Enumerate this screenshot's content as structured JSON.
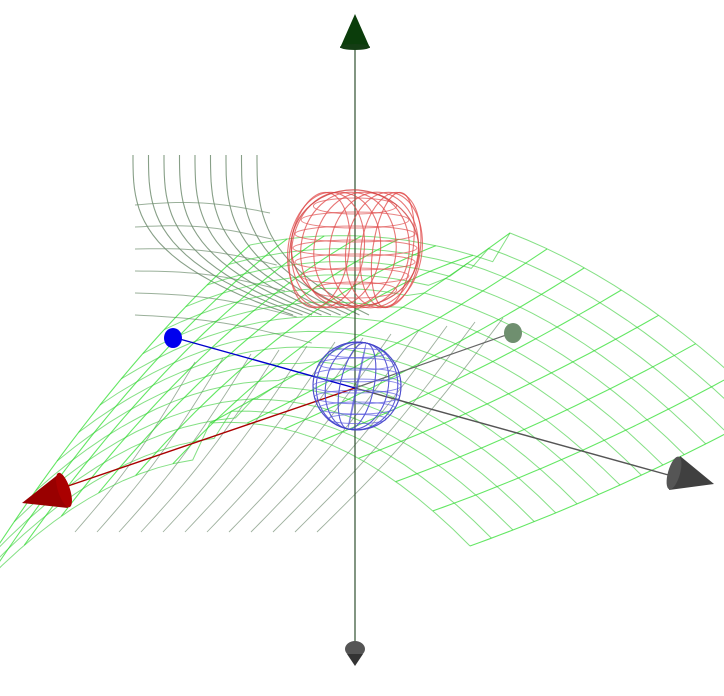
{
  "scene": {
    "background": "#ffffff",
    "axes": [
      {
        "name": "x-axis",
        "color": "#8b0000"
      },
      {
        "name": "y-axis",
        "color": "#555555"
      },
      {
        "name": "z-axis",
        "color": "#0b3d0b"
      },
      {
        "name": "blue-axis",
        "color": "#0000cc"
      }
    ],
    "objects": [
      {
        "name": "red-torus-wireframe",
        "color": "#e06060"
      },
      {
        "name": "blue-sphere-wireframe",
        "color": "#5050d8"
      },
      {
        "name": "green-saddle-surface",
        "color": "#22dd22"
      },
      {
        "name": "gray-surface-grid",
        "color": "#6f8f6f"
      }
    ]
  }
}
